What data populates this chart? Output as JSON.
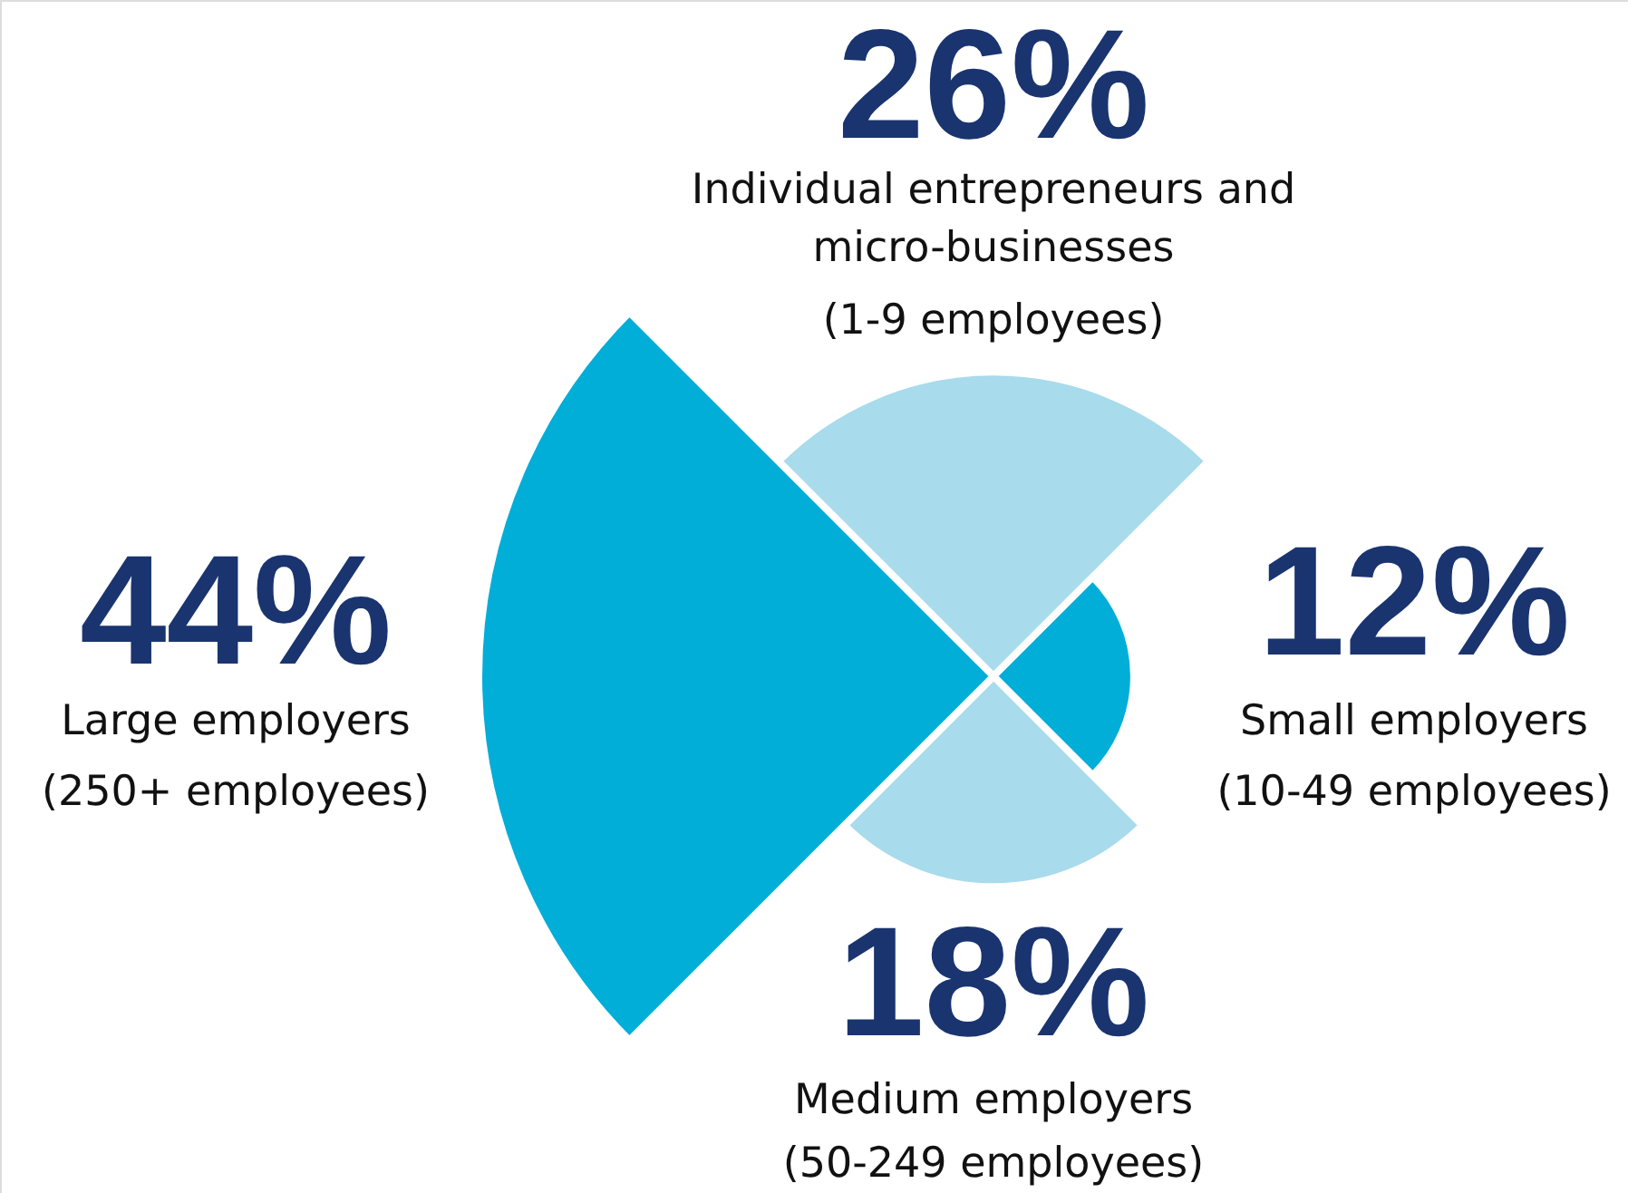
{
  "chart_data": {
    "type": "other",
    "categories": [
      "Individual entrepreneurs and\nmicro-businesses\n(1-9 employees)",
      "Small employers\n(10-49 employees)",
      "Medium employers\n(50-249 employees)",
      "Large employers\n(250+ employees)"
    ],
    "values": [
      26,
      12,
      18,
      44
    ],
    "value_labels": [
      "26%",
      "12%",
      "18%",
      "44%"
    ],
    "colors": [
      "#a8dbec",
      "#00aed8",
      "#a8dbec",
      "#00aed8"
    ],
    "data_labels": true
  }
}
